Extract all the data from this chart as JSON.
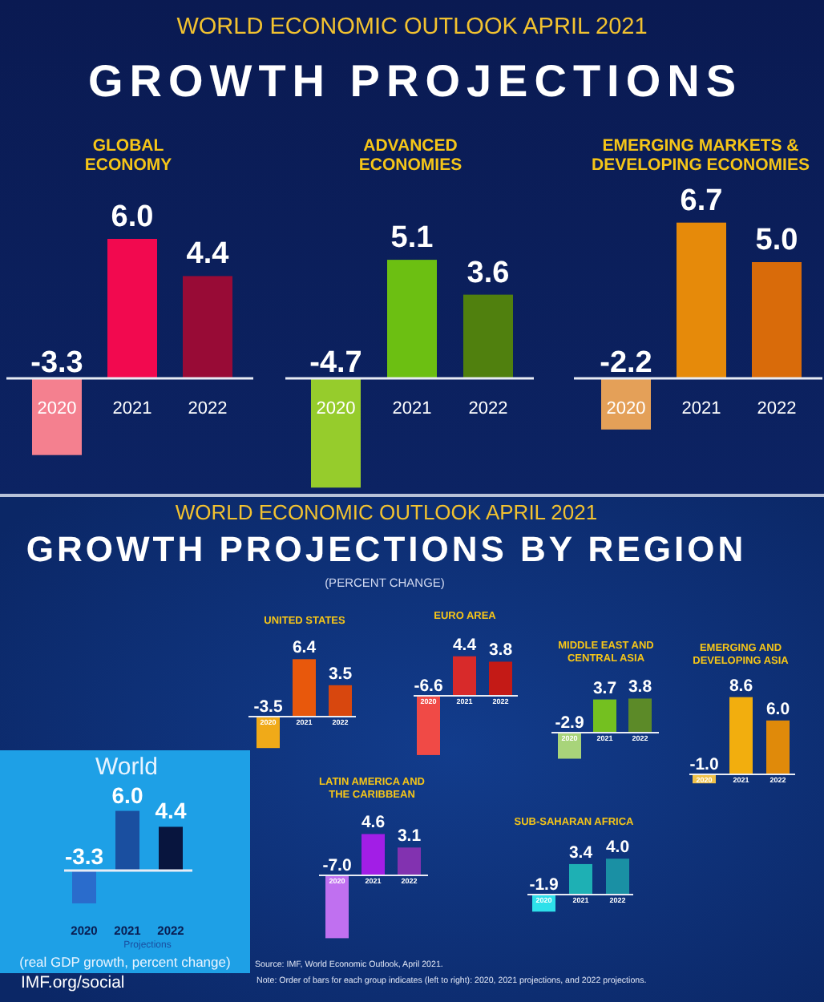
{
  "chart_data": [
    {
      "type": "other",
      "subtitle": "WORLD ECONOMIC OUTLOOK APRIL 2021",
      "title": "GROWTH PROJECTIONS"
    },
    {
      "type": "bar",
      "title": "GLOBAL ECONOMY",
      "categories": [
        "2020",
        "2021",
        "2022"
      ],
      "values": [
        -3.3,
        6.0,
        4.4
      ],
      "value_labels": [
        "-3.3",
        "6.0",
        "4.4"
      ],
      "colors": [
        "#f4808f",
        "#f2094f",
        "#980b36"
      ]
    },
    {
      "type": "bar",
      "title": "ADVANCED ECONOMIES",
      "categories": [
        "2020",
        "2021",
        "2022"
      ],
      "values": [
        -4.7,
        5.1,
        3.6
      ],
      "value_labels": [
        "-4.7",
        "5.1",
        "3.6"
      ],
      "colors": [
        "#96cc2c",
        "#6cbf12",
        "#50800e"
      ]
    },
    {
      "type": "bar",
      "title": "EMERGING MARKETS & DEVELOPING ECONOMIES",
      "categories": [
        "2020",
        "2021",
        "2022"
      ],
      "values": [
        -2.2,
        6.7,
        5.0
      ],
      "value_labels": [
        "-2.2",
        "6.7",
        "5.0"
      ],
      "colors": [
        "#e4a058",
        "#e68a0a",
        "#d96b0a"
      ]
    },
    {
      "type": "other",
      "subtitle": "WORLD ECONOMIC OUTLOOK APRIL 2021",
      "title": "GROWTH PROJECTIONS BY REGION",
      "annotations": [
        "(PERCENT CHANGE)",
        "Source: IMF, World Economic Outlook, April 2021.",
        "Note: Order of bars for each group indicates (left to right): 2020, 2021 projections, and 2022 projections.",
        "IMF.org/social"
      ]
    },
    {
      "type": "bar",
      "title": "UNITED STATES",
      "categories": [
        "2020",
        "2021",
        "2022"
      ],
      "values": [
        -3.5,
        6.4,
        3.5
      ],
      "value_labels": [
        "-3.5",
        "6.4",
        "3.5"
      ],
      "colors": [
        "#f0aa18",
        "#e8580c",
        "#d8470e"
      ]
    },
    {
      "type": "bar",
      "title": "EURO AREA",
      "categories": [
        "2020",
        "2021",
        "2022"
      ],
      "values": [
        -6.6,
        4.4,
        3.8
      ],
      "value_labels": [
        "-6.6",
        "4.4",
        "3.8"
      ],
      "colors": [
        "#f04a46",
        "#d82a2a",
        "#c41a16"
      ]
    },
    {
      "type": "bar",
      "title": "MIDDLE EAST AND CENTRAL ASIA",
      "categories": [
        "2020",
        "2021",
        "2022"
      ],
      "values": [
        -2.9,
        3.7,
        3.8
      ],
      "value_labels": [
        "-2.9",
        "3.7",
        "3.8"
      ],
      "colors": [
        "#a8d47a",
        "#74c020",
        "#5c8a28"
      ]
    },
    {
      "type": "bar",
      "title": "EMERGING AND DEVELOPING ASIA",
      "categories": [
        "2020",
        "2021",
        "2022"
      ],
      "values": [
        -1.0,
        8.6,
        6.0
      ],
      "value_labels": [
        "-1.0",
        "8.6",
        "6.0"
      ],
      "colors": [
        "#f0c24a",
        "#f2ae0e",
        "#e08a0a"
      ]
    },
    {
      "type": "bar",
      "title": "World",
      "categories": [
        "2020",
        "2021",
        "2022"
      ],
      "values": [
        -3.3,
        6.0,
        4.4
      ],
      "value_labels": [
        "-3.3",
        "6.0",
        "4.4"
      ],
      "colors": [
        "#2a6ccc",
        "#1a4fa0",
        "#08153e"
      ],
      "annotations": [
        "Projections",
        "(real GDP growth, percent change)"
      ]
    },
    {
      "type": "bar",
      "title": "LATIN AMERICA AND THE CARIBBEAN",
      "categories": [
        "2020",
        "2021",
        "2022"
      ],
      "values": [
        -7.0,
        4.6,
        3.1
      ],
      "value_labels": [
        "-7.0",
        "4.6",
        "3.1"
      ],
      "colors": [
        "#c070f0",
        "#a21ee6",
        "#8232b0"
      ]
    },
    {
      "type": "bar",
      "title": "SUB-SAHARAN AFRICA",
      "categories": [
        "2020",
        "2021",
        "2022"
      ],
      "values": [
        -1.9,
        3.4,
        4.0
      ],
      "value_labels": [
        "-1.9",
        "3.4",
        "4.0"
      ],
      "colors": [
        "#2ee0ea",
        "#1eb0b4",
        "#1a90a4"
      ]
    }
  ]
}
